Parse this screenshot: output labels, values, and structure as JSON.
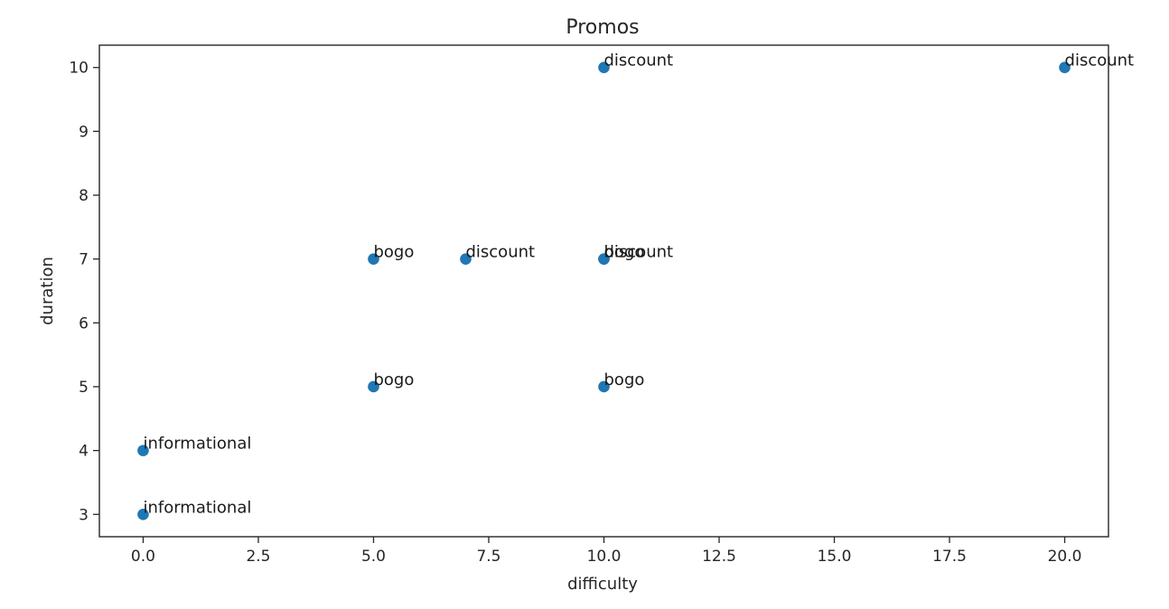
{
  "chart_data": {
    "type": "scatter",
    "title": "Promos",
    "xlabel": "difficulty",
    "ylabel": "duration",
    "xlim": [
      -0.95,
      20.95
    ],
    "ylim": [
      2.65,
      10.35
    ],
    "xticks": [
      0.0,
      2.5,
      5.0,
      7.5,
      10.0,
      12.5,
      15.0,
      17.5,
      20.0
    ],
    "xtick_labels": [
      "0.0",
      "2.5",
      "5.0",
      "7.5",
      "10.0",
      "12.5",
      "15.0",
      "17.5",
      "20.0"
    ],
    "yticks": [
      3,
      4,
      5,
      6,
      7,
      8,
      9,
      10
    ],
    "ytick_labels": [
      "3",
      "4",
      "5",
      "6",
      "7",
      "8",
      "9",
      "10"
    ],
    "grid": false,
    "color": "#1f77b4",
    "points": [
      {
        "x": 10,
        "y": 7,
        "label": "bogo"
      },
      {
        "x": 0,
        "y": 4,
        "label": "informational"
      },
      {
        "x": 0,
        "y": 3,
        "label": "informational"
      },
      {
        "x": 5,
        "y": 7,
        "label": "bogo"
      },
      {
        "x": 20,
        "y": 10,
        "label": "discount"
      },
      {
        "x": 7,
        "y": 7,
        "label": "discount"
      },
      {
        "x": 10,
        "y": 10,
        "label": "discount"
      },
      {
        "x": 10,
        "y": 7,
        "label": "discount"
      },
      {
        "x": 10,
        "y": 5,
        "label": "bogo"
      },
      {
        "x": 5,
        "y": 5,
        "label": "bogo"
      }
    ]
  }
}
